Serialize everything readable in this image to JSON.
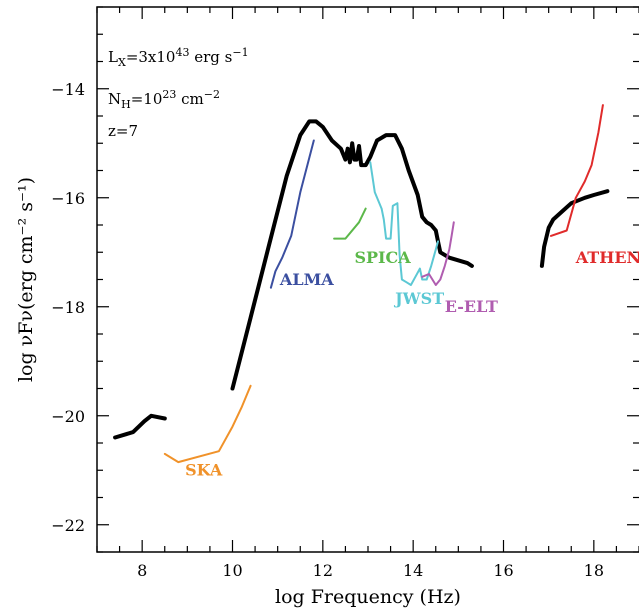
{
  "chart_data": {
    "type": "line",
    "xlabel": "log Frequency (Hz)",
    "ylabel": "log νFν(erg cm⁻² s⁻¹)",
    "xlim": [
      7.0,
      19.0
    ],
    "ylim": [
      -22.5,
      -12.5
    ],
    "x_ticks": [
      8,
      10,
      12,
      14,
      16,
      18
    ],
    "x_tick_labels": [
      "8",
      "10",
      "12",
      "14",
      "16",
      "18"
    ],
    "y_ticks": [
      -22,
      -20,
      -18,
      -16,
      -14
    ],
    "y_tick_labels": [
      "−22",
      "−20",
      "−18",
      "−16",
      "−14"
    ],
    "grid": false,
    "annotations": [
      {
        "base": "L",
        "sub": "X",
        "rest": "=3x10",
        "sup": "43",
        "tail": " erg s",
        "sup2": "−1"
      },
      {
        "base": "N",
        "sub": "H",
        "rest": "=10",
        "sup": "23",
        "tail": " cm",
        "sup2": "−2"
      },
      {
        "text": "z=7"
      }
    ],
    "series": [
      {
        "label": "",
        "color": "#000000",
        "width": 4,
        "segments": [
          [
            [
              7.4,
              -20.4
            ],
            [
              7.8,
              -20.3
            ],
            [
              8.05,
              -20.1
            ],
            [
              8.2,
              -20.0
            ],
            [
              8.5,
              -20.05
            ]
          ],
          [
            [
              10.0,
              -19.5
            ],
            [
              10.4,
              -18.2
            ],
            [
              10.8,
              -16.9
            ],
            [
              11.2,
              -15.6
            ],
            [
              11.5,
              -14.85
            ],
            [
              11.7,
              -14.6
            ],
            [
              11.85,
              -14.6
            ],
            [
              12.0,
              -14.7
            ],
            [
              12.2,
              -14.95
            ],
            [
              12.4,
              -15.1
            ],
            [
              12.5,
              -15.3
            ],
            [
              12.55,
              -15.1
            ],
            [
              12.6,
              -15.35
            ],
            [
              12.65,
              -15.0
            ],
            [
              12.7,
              -15.3
            ],
            [
              12.75,
              -15.3
            ],
            [
              12.8,
              -15.05
            ],
            [
              12.85,
              -15.4
            ],
            [
              12.95,
              -15.4
            ],
            [
              13.05,
              -15.25
            ],
            [
              13.2,
              -14.95
            ],
            [
              13.4,
              -14.85
            ],
            [
              13.6,
              -14.85
            ],
            [
              13.75,
              -15.1
            ],
            [
              13.9,
              -15.5
            ],
            [
              14.1,
              -15.95
            ],
            [
              14.2,
              -16.35
            ],
            [
              14.3,
              -16.45
            ],
            [
              14.4,
              -16.5
            ],
            [
              14.5,
              -16.6
            ],
            [
              14.55,
              -16.8
            ],
            [
              14.6,
              -17.0
            ],
            [
              14.8,
              -17.1
            ],
            [
              15.2,
              -17.2
            ],
            [
              15.3,
              -17.25
            ]
          ],
          [
            [
              16.85,
              -17.25
            ],
            [
              16.9,
              -16.9
            ],
            [
              17.0,
              -16.55
            ],
            [
              17.1,
              -16.4
            ],
            [
              17.3,
              -16.25
            ],
            [
              17.5,
              -16.1
            ],
            [
              17.8,
              -16.0
            ],
            [
              18.0,
              -15.95
            ],
            [
              18.3,
              -15.88
            ]
          ]
        ]
      },
      {
        "label": "ALMA",
        "color": "#3b4fa0",
        "width": 2,
        "label_pos": [
          11.05,
          -17.6
        ],
        "segments": [
          [
            [
              10.85,
              -17.65
            ],
            [
              10.95,
              -17.35
            ],
            [
              11.1,
              -17.1
            ],
            [
              11.3,
              -16.7
            ],
            [
              11.5,
              -15.9
            ],
            [
              11.8,
              -14.95
            ]
          ]
        ]
      },
      {
        "label": "SPICA",
        "color": "#5cb84a",
        "width": 2,
        "label_pos": [
          12.7,
          -17.2
        ],
        "segments": [
          [
            [
              12.25,
              -16.75
            ],
            [
              12.5,
              -16.75
            ],
            [
              12.8,
              -16.45
            ],
            [
              12.95,
              -16.2
            ]
          ]
        ]
      },
      {
        "label": "JWST",
        "color": "#5cc8d4",
        "width": 2,
        "label_pos": [
          13.6,
          -17.95
        ],
        "segments": [
          [
            [
              13.05,
              -15.35
            ],
            [
              13.15,
              -15.9
            ],
            [
              13.3,
              -16.2
            ],
            [
              13.35,
              -16.4
            ],
            [
              13.4,
              -16.75
            ],
            [
              13.5,
              -16.75
            ],
            [
              13.55,
              -16.15
            ],
            [
              13.65,
              -16.1
            ],
            [
              13.7,
              -17.05
            ],
            [
              13.75,
              -17.5
            ],
            [
              13.85,
              -17.55
            ],
            [
              13.95,
              -17.6
            ],
            [
              14.05,
              -17.45
            ],
            [
              14.15,
              -17.3
            ],
            [
              14.2,
              -17.5
            ],
            [
              14.3,
              -17.5
            ],
            [
              14.4,
              -17.25
            ],
            [
              14.5,
              -16.95
            ],
            [
              14.55,
              -16.8
            ]
          ]
        ]
      },
      {
        "label": "E-ELT",
        "color": "#b05db0",
        "width": 2,
        "label_pos": [
          14.7,
          -18.1
        ],
        "segments": [
          [
            [
              14.2,
              -17.45
            ],
            [
              14.35,
              -17.4
            ],
            [
              14.5,
              -17.6
            ],
            [
              14.6,
              -17.5
            ],
            [
              14.7,
              -17.25
            ],
            [
              14.8,
              -16.95
            ],
            [
              14.85,
              -16.7
            ],
            [
              14.9,
              -16.45
            ]
          ]
        ]
      },
      {
        "label": "ATHENA",
        "color": "#e02b2b",
        "width": 2,
        "label_pos": [
          17.6,
          -17.2
        ],
        "segments": [
          [
            [
              17.05,
              -16.7
            ],
            [
              17.4,
              -16.6
            ],
            [
              17.6,
              -16.0
            ],
            [
              17.8,
              -15.7
            ],
            [
              17.95,
              -15.4
            ],
            [
              18.1,
              -14.8
            ],
            [
              18.2,
              -14.3
            ]
          ]
        ]
      },
      {
        "label": "SKA",
        "color": "#f0922a",
        "width": 2,
        "label_pos": [
          8.95,
          -21.1
        ],
        "segments": [
          [
            [
              8.5,
              -20.7
            ],
            [
              8.8,
              -20.85
            ],
            [
              9.7,
              -20.65
            ],
            [
              10.0,
              -20.2
            ],
            [
              10.2,
              -19.85
            ],
            [
              10.35,
              -19.55
            ],
            [
              10.4,
              -19.45
            ]
          ]
        ]
      }
    ]
  }
}
